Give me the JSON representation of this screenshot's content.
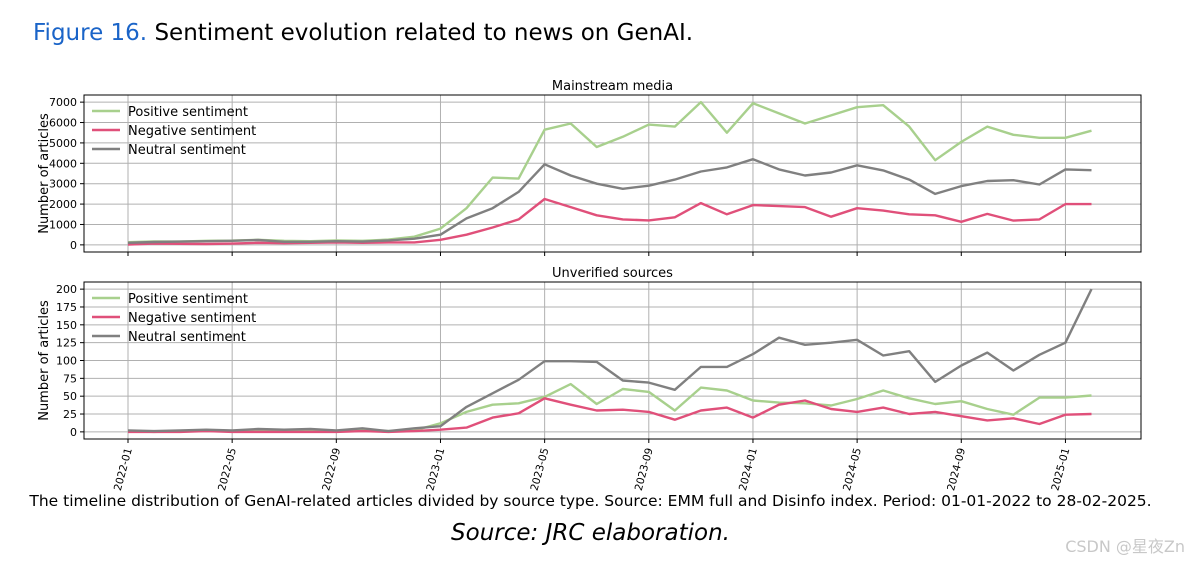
{
  "figure": {
    "label": "Figure 16.",
    "title": "Sentiment evolution related to news on GenAI.",
    "caption": "The timeline distribution of GenAI-related articles divided by source type. Source: EMM full and Disinfo index. Period: 01-01-2022 to 28-02-2025.",
    "source": "Source: JRC elaboration.",
    "watermark": "CSDN @星夜Zn"
  },
  "colors": {
    "positive": "#a8d08d",
    "negative": "#e0507a",
    "neutral": "#808080",
    "accent": "#1a64c8"
  },
  "chart_data": [
    {
      "type": "line",
      "title": "Mainstream media",
      "xlabel": "",
      "ylabel": "Number of articles",
      "x": [
        "2022-01",
        "2022-02",
        "2022-03",
        "2022-04",
        "2022-05",
        "2022-06",
        "2022-07",
        "2022-08",
        "2022-09",
        "2022-10",
        "2022-11",
        "2022-12",
        "2023-01",
        "2023-02",
        "2023-03",
        "2023-04",
        "2023-05",
        "2023-06",
        "2023-07",
        "2023-08",
        "2023-09",
        "2023-10",
        "2023-11",
        "2023-12",
        "2024-01",
        "2024-02",
        "2024-03",
        "2024-04",
        "2024-05",
        "2024-06",
        "2024-07",
        "2024-08",
        "2024-09",
        "2024-10",
        "2024-11",
        "2024-12",
        "2025-01",
        "2025-02"
      ],
      "xticks": [
        "2022-01",
        "2022-05",
        "2022-09",
        "2023-01",
        "2023-05",
        "2023-09",
        "2024-01",
        "2024-05",
        "2024-09",
        "2025-01"
      ],
      "yticks": [
        0,
        1000,
        2000,
        3000,
        4000,
        5000,
        6000,
        7000
      ],
      "ylim": [
        -350,
        7350
      ],
      "grid": true,
      "legend": "top-left",
      "series": [
        {
          "name": "Positive sentiment",
          "color_key": "positive",
          "values": [
            130,
            170,
            160,
            200,
            210,
            250,
            200,
            180,
            220,
            200,
            260,
            400,
            800,
            1800,
            3300,
            3250,
            5650,
            5950,
            4800,
            5300,
            5900,
            5800,
            7000,
            5500,
            6950,
            6450,
            5950,
            6350,
            6750,
            6850,
            5800,
            4150,
            5050,
            5800,
            5400,
            5250,
            5250,
            5600
          ]
        },
        {
          "name": "Negative sentiment",
          "color_key": "negative",
          "values": [
            20,
            60,
            50,
            40,
            60,
            100,
            80,
            100,
            120,
            100,
            120,
            120,
            250,
            500,
            850,
            1250,
            2250,
            1850,
            1450,
            1250,
            1200,
            1350,
            2050,
            1500,
            1950,
            1900,
            1850,
            1380,
            1800,
            1680,
            1500,
            1450,
            1130,
            1520,
            1190,
            1250,
            2000,
            2000
          ]
        },
        {
          "name": "Neutral sentiment",
          "color_key": "neutral",
          "values": [
            100,
            140,
            160,
            180,
            200,
            240,
            150,
            150,
            180,
            160,
            220,
            300,
            500,
            1300,
            1800,
            2600,
            3950,
            3400,
            3000,
            2750,
            2900,
            3200,
            3600,
            3800,
            4200,
            3700,
            3400,
            3550,
            3900,
            3650,
            3200,
            2500,
            2880,
            3130,
            3170,
            2960,
            3700,
            3660
          ]
        }
      ]
    },
    {
      "type": "line",
      "title": "Unverified sources",
      "xlabel": "",
      "ylabel": "Number of articles",
      "x": [
        "2022-01",
        "2022-02",
        "2022-03",
        "2022-04",
        "2022-05",
        "2022-06",
        "2022-07",
        "2022-08",
        "2022-09",
        "2022-10",
        "2022-11",
        "2022-12",
        "2023-01",
        "2023-02",
        "2023-03",
        "2023-04",
        "2023-05",
        "2023-06",
        "2023-07",
        "2023-08",
        "2023-09",
        "2023-10",
        "2023-11",
        "2023-12",
        "2024-01",
        "2024-02",
        "2024-03",
        "2024-04",
        "2024-05",
        "2024-06",
        "2024-07",
        "2024-08",
        "2024-09",
        "2024-10",
        "2024-11",
        "2024-12",
        "2025-01",
        "2025-02"
      ],
      "xticks": [
        "2022-01",
        "2022-05",
        "2022-09",
        "2023-01",
        "2023-05",
        "2023-09",
        "2024-01",
        "2024-05",
        "2024-09",
        "2025-01"
      ],
      "yticks": [
        0,
        25,
        50,
        75,
        100,
        125,
        150,
        175,
        200
      ],
      "ylim": [
        -10,
        210
      ],
      "grid": true,
      "legend": "top-left",
      "series": [
        {
          "name": "Positive sentiment",
          "color_key": "positive",
          "values": [
            1,
            0,
            1,
            1,
            1,
            1,
            2,
            1,
            1,
            2,
            1,
            2,
            12,
            28,
            38,
            40,
            49,
            67,
            39,
            60,
            56,
            30,
            62,
            58,
            44,
            41,
            40,
            37,
            46,
            58,
            47,
            39,
            43,
            32,
            24,
            48,
            48,
            51
          ]
        },
        {
          "name": "Negative sentiment",
          "color_key": "negative",
          "values": [
            0,
            0,
            0,
            1,
            0,
            0,
            0,
            0,
            0,
            1,
            0,
            1,
            3,
            6,
            20,
            26,
            47,
            38,
            30,
            31,
            28,
            17,
            30,
            34,
            20,
            38,
            44,
            32,
            28,
            34,
            25,
            28,
            22,
            16,
            19,
            11,
            24,
            25
          ]
        },
        {
          "name": "Neutral sentiment",
          "color_key": "neutral",
          "values": [
            2,
            1,
            2,
            3,
            2,
            4,
            3,
            4,
            2,
            5,
            1,
            5,
            8,
            35,
            54,
            73,
            99,
            99,
            98,
            72,
            69,
            59,
            91,
            91,
            109,
            132,
            122,
            125,
            129,
            107,
            113,
            70,
            93,
            111,
            86,
            108,
            125,
            200
          ]
        }
      ]
    }
  ]
}
